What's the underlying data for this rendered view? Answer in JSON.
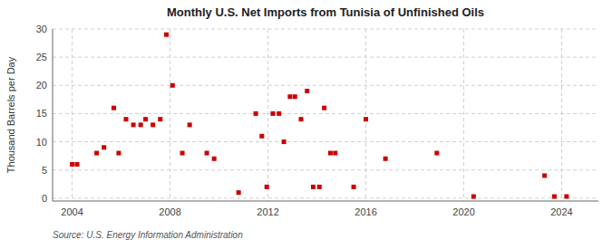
{
  "chart_data": {
    "type": "scatter",
    "title": "Monthly U.S. Net Imports from Tunisia of Unfinished Oils",
    "y_label": "Thousand Barrels per Day",
    "annotations": [
      "Source: U.S. Energy Information Administration"
    ],
    "color": "#cc0000",
    "marker": "square",
    "grid": true,
    "xlim": [
      2003.2,
      2025.5
    ],
    "ylim": [
      -0.5,
      30
    ],
    "xticks": [
      2004,
      2008,
      2012,
      2016,
      2020,
      2024
    ],
    "yticks": [
      0,
      5,
      10,
      15,
      20,
      25,
      30
    ],
    "x": [
      2004.0,
      2004.2,
      2005.0,
      2005.3,
      2005.7,
      2005.9,
      2006.2,
      2006.5,
      2006.8,
      2007.0,
      2007.3,
      2007.6,
      2007.85,
      2008.1,
      2008.5,
      2008.8,
      2009.5,
      2009.8,
      2010.8,
      2011.5,
      2011.75,
      2011.95,
      2012.2,
      2012.45,
      2012.65,
      2012.9,
      2013.1,
      2013.35,
      2013.6,
      2013.85,
      2014.1,
      2014.3,
      2014.55,
      2014.75,
      2015.5,
      2016.0,
      2016.8,
      2018.9,
      2020.4,
      2023.3,
      2023.7,
      2024.2
    ],
    "values": [
      6,
      6,
      8,
      9,
      16,
      8,
      14,
      13,
      13,
      14,
      13,
      14,
      29,
      20,
      8,
      13,
      8,
      7,
      1,
      15,
      11,
      2,
      15,
      15,
      10,
      18,
      18,
      14,
      19,
      2,
      2,
      16,
      8,
      8,
      2,
      14,
      7,
      8,
      0.3,
      4,
      0.3,
      0.3
    ]
  }
}
